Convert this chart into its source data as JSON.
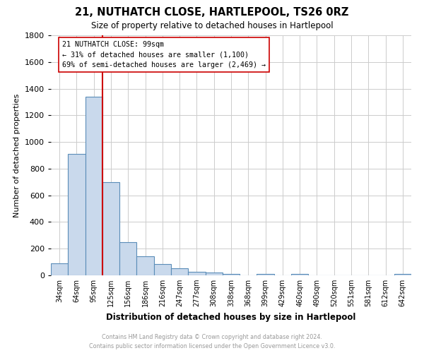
{
  "title": "21, NUTHATCH CLOSE, HARTLEPOOL, TS26 0RZ",
  "subtitle": "Size of property relative to detached houses in Hartlepool",
  "xlabel": "Distribution of detached houses by size in Hartlepool",
  "ylabel": "Number of detached properties",
  "bin_labels": [
    "34sqm",
    "64sqm",
    "95sqm",
    "125sqm",
    "156sqm",
    "186sqm",
    "216sqm",
    "247sqm",
    "277sqm",
    "308sqm",
    "338sqm",
    "368sqm",
    "399sqm",
    "429sqm",
    "460sqm",
    "490sqm",
    "520sqm",
    "551sqm",
    "581sqm",
    "612sqm",
    "642sqm"
  ],
  "bar_heights": [
    90,
    910,
    1340,
    700,
    250,
    145,
    85,
    55,
    25,
    20,
    10,
    0,
    10,
    0,
    10,
    0,
    0,
    0,
    0,
    0,
    10
  ],
  "bar_color": "#c9d9ec",
  "bar_edge_color": "#5b8db8",
  "ylim": [
    0,
    1800
  ],
  "yticks": [
    0,
    200,
    400,
    600,
    800,
    1000,
    1200,
    1400,
    1600,
    1800
  ],
  "property_line_color": "#cc0000",
  "annotation_title": "21 NUTHATCH CLOSE: 99sqm",
  "annotation_line1": "← 31% of detached houses are smaller (1,100)",
  "annotation_line2": "69% of semi-detached houses are larger (2,469) →",
  "annotation_box_color": "#ffffff",
  "annotation_box_edge_color": "#cc0000",
  "footer_line1": "Contains HM Land Registry data © Crown copyright and database right 2024.",
  "footer_line2": "Contains public sector information licensed under the Open Government Licence v3.0.",
  "background_color": "#ffffff",
  "grid_color": "#cccccc"
}
